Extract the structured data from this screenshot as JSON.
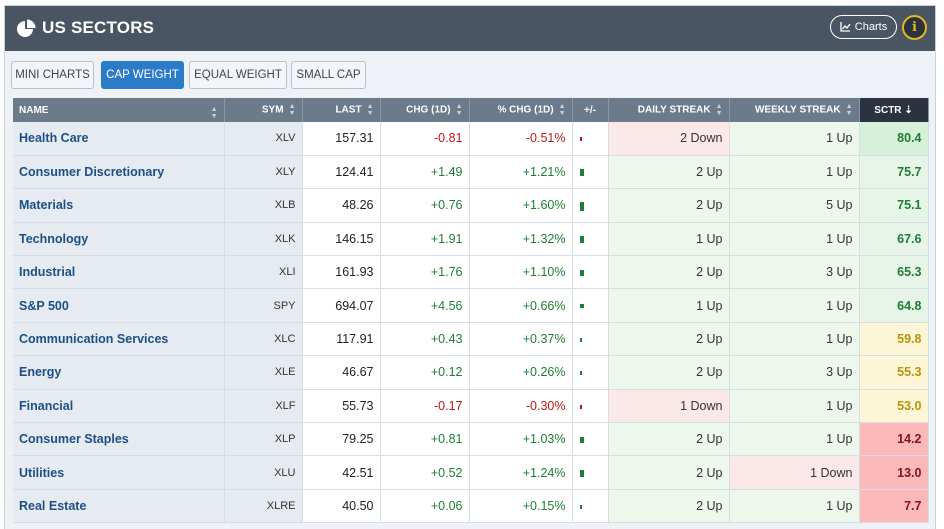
{
  "header": {
    "title": "US SECTORS",
    "charts_label": "Charts",
    "info_label": "i"
  },
  "tabs": [
    {
      "label": "MINI CHARTS",
      "active": false
    },
    {
      "label": "CAP WEIGHT",
      "active": true
    },
    {
      "label": "EQUAL WEIGHT",
      "active": false
    },
    {
      "label": "SMALL CAP",
      "active": false
    }
  ],
  "columns": {
    "name": "NAME",
    "sym": "SYM",
    "last": "LAST",
    "chg": "CHG (1D)",
    "pchg": "% CHG (1D)",
    "bar": "+/-",
    "daily": "DAILY STREAK",
    "weekly": "WEEKLY STREAK",
    "sctr": "SCTR"
  },
  "colors": {
    "positive": "#1e7e34",
    "negative": "#c0141a",
    "accent": "#2b7bc9",
    "header_bg": "#495563"
  },
  "rows": [
    {
      "name": "Health Care",
      "sym": "XLV",
      "last": "157.31",
      "chg": "-0.81",
      "pchg": "-0.51%",
      "pchg_value": -0.51,
      "daily": "2 Down",
      "daily_dir": "down",
      "weekly": "1 Up",
      "weekly_dir": "up",
      "sctr": "80.4",
      "sctr_value": 80.4
    },
    {
      "name": "Consumer Discretionary",
      "sym": "XLY",
      "last": "124.41",
      "chg": "+1.49",
      "pchg": "+1.21%",
      "pchg_value": 1.21,
      "daily": "2 Up",
      "daily_dir": "up",
      "weekly": "1 Up",
      "weekly_dir": "up",
      "sctr": "75.7",
      "sctr_value": 75.7
    },
    {
      "name": "Materials",
      "sym": "XLB",
      "last": "48.26",
      "chg": "+0.76",
      "pchg": "+1.60%",
      "pchg_value": 1.6,
      "daily": "2 Up",
      "daily_dir": "up",
      "weekly": "5 Up",
      "weekly_dir": "up",
      "sctr": "75.1",
      "sctr_value": 75.1
    },
    {
      "name": "Technology",
      "sym": "XLK",
      "last": "146.15",
      "chg": "+1.91",
      "pchg": "+1.32%",
      "pchg_value": 1.32,
      "daily": "1 Up",
      "daily_dir": "up",
      "weekly": "1 Up",
      "weekly_dir": "up",
      "sctr": "67.6",
      "sctr_value": 67.6
    },
    {
      "name": "Industrial",
      "sym": "XLI",
      "last": "161.93",
      "chg": "+1.76",
      "pchg": "+1.10%",
      "pchg_value": 1.1,
      "daily": "2 Up",
      "daily_dir": "up",
      "weekly": "3 Up",
      "weekly_dir": "up",
      "sctr": "65.3",
      "sctr_value": 65.3
    },
    {
      "name": "S&P 500",
      "sym": "SPY",
      "last": "694.07",
      "chg": "+4.56",
      "pchg": "+0.66%",
      "pchg_value": 0.66,
      "daily": "1 Up",
      "daily_dir": "up",
      "weekly": "1 Up",
      "weekly_dir": "up",
      "sctr": "64.8",
      "sctr_value": 64.8
    },
    {
      "name": "Communication Services",
      "sym": "XLC",
      "last": "117.91",
      "chg": "+0.43",
      "pchg": "+0.37%",
      "pchg_value": 0.37,
      "daily": "2 Up",
      "daily_dir": "up",
      "weekly": "1 Up",
      "weekly_dir": "up",
      "sctr": "59.8",
      "sctr_value": 59.8
    },
    {
      "name": "Energy",
      "sym": "XLE",
      "last": "46.67",
      "chg": "+0.12",
      "pchg": "+0.26%",
      "pchg_value": 0.26,
      "daily": "2 Up",
      "daily_dir": "up",
      "weekly": "3 Up",
      "weekly_dir": "up",
      "sctr": "55.3",
      "sctr_value": 55.3
    },
    {
      "name": "Financial",
      "sym": "XLF",
      "last": "55.73",
      "chg": "-0.17",
      "pchg": "-0.30%",
      "pchg_value": -0.3,
      "daily": "1 Down",
      "daily_dir": "down",
      "weekly": "1 Up",
      "weekly_dir": "up",
      "sctr": "53.0",
      "sctr_value": 53.0
    },
    {
      "name": "Consumer Staples",
      "sym": "XLP",
      "last": "79.25",
      "chg": "+0.81",
      "pchg": "+1.03%",
      "pchg_value": 1.03,
      "daily": "2 Up",
      "daily_dir": "up",
      "weekly": "1 Up",
      "weekly_dir": "up",
      "sctr": "14.2",
      "sctr_value": 14.2
    },
    {
      "name": "Utilities",
      "sym": "XLU",
      "last": "42.51",
      "chg": "+0.52",
      "pchg": "+1.24%",
      "pchg_value": 1.24,
      "daily": "2 Up",
      "daily_dir": "up",
      "weekly": "1 Down",
      "weekly_dir": "down",
      "sctr": "13.0",
      "sctr_value": 13.0
    },
    {
      "name": "Real Estate",
      "sym": "XLRE",
      "last": "40.50",
      "chg": "+0.06",
      "pchg": "+0.15%",
      "pchg_value": 0.15,
      "daily": "2 Up",
      "daily_dir": "up",
      "weekly": "1 Up",
      "weekly_dir": "up",
      "sctr": "7.7",
      "sctr_value": 7.7
    }
  ]
}
